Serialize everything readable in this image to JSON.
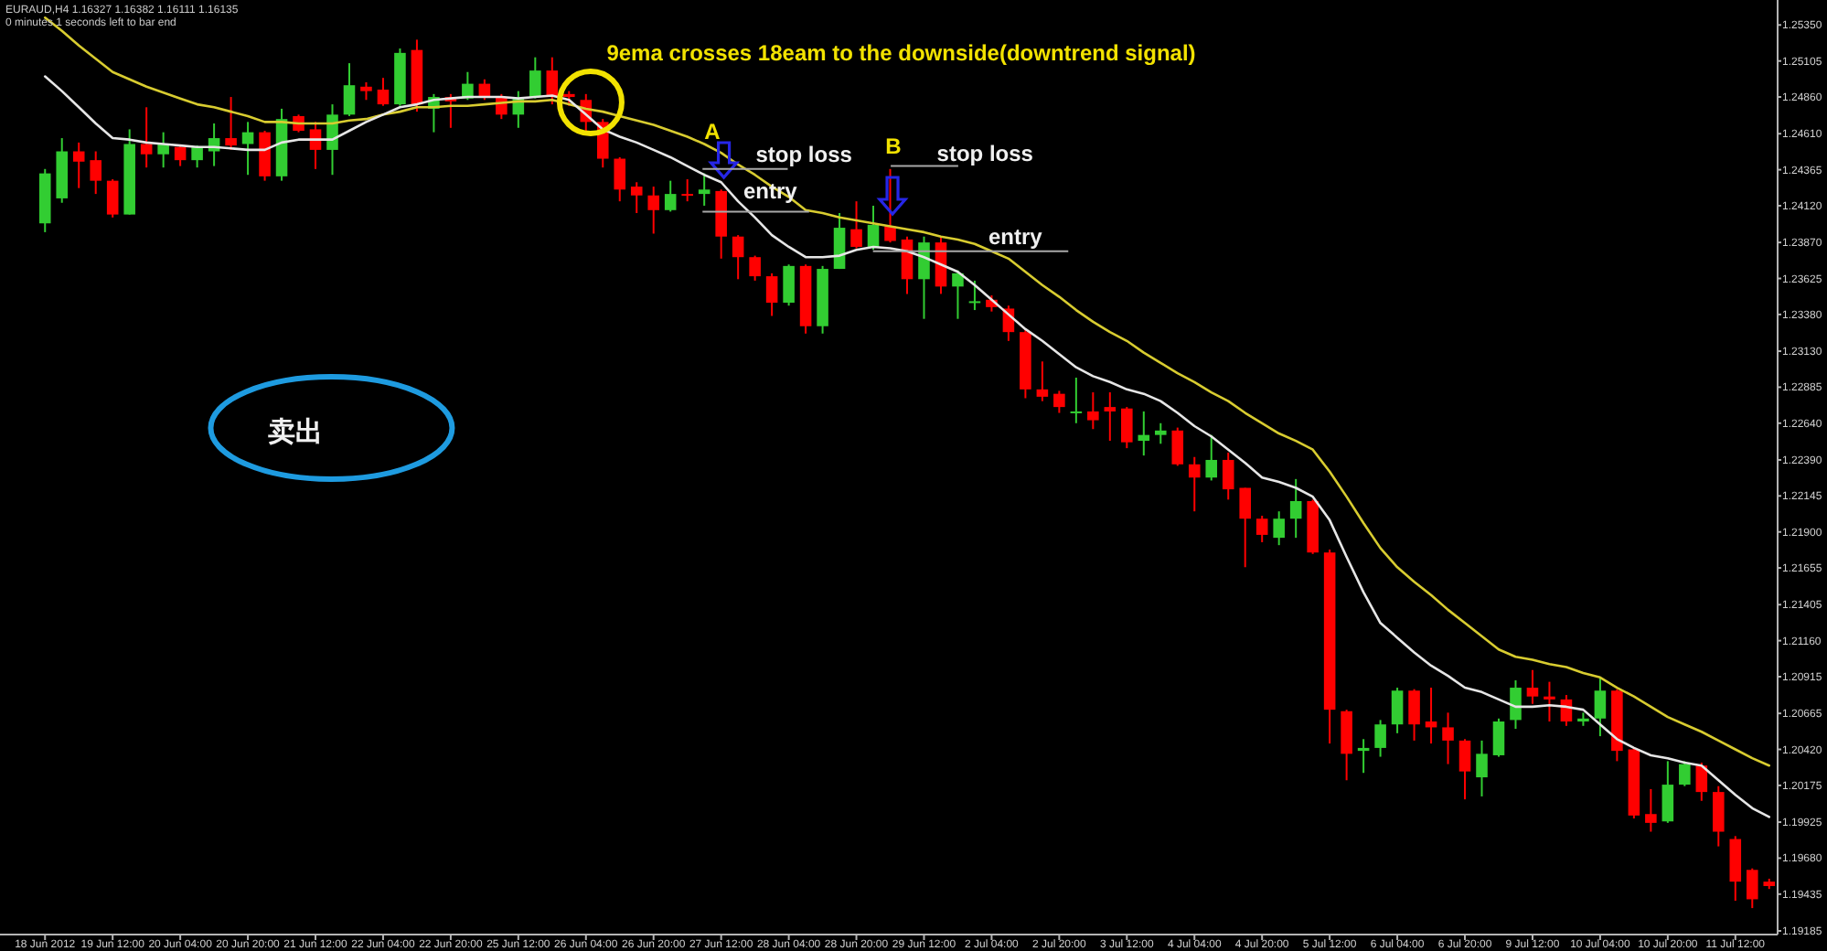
{
  "chart_data": {
    "type": "candlestick",
    "title": "EURAUD,H4  1.16327 1.16382 1.16111 1.16135",
    "subtitle": "0 minutes 1 seconds left to bar end",
    "categories": [
      "18 Jun 2012",
      null,
      null,
      null,
      "19 Jun 12:00",
      null,
      null,
      null,
      "20 Jun 04:00",
      null,
      null,
      null,
      "20 Jun 20:00",
      null,
      null,
      null,
      "21 Jun 12:00",
      null,
      null,
      null,
      "22 Jun 04:00",
      null,
      null,
      null,
      "22 Jun 20:00",
      null,
      null,
      null,
      "25 Jun 12:00",
      null,
      null,
      null,
      "26 Jun 04:00",
      null,
      null,
      null,
      "26 Jun 20:00",
      null,
      null,
      null,
      "27 Jun 12:00",
      null,
      null,
      null,
      "28 Jun 04:00",
      null,
      null,
      null,
      "28 Jun 20:00",
      null,
      null,
      null,
      "29 Jun 12:00",
      null,
      null,
      null,
      "2 Jul 04:00",
      null,
      null,
      null,
      "2 Jul 20:00",
      null,
      null,
      null,
      "3 Jul 12:00",
      null,
      null,
      null,
      "4 Jul 04:00",
      null,
      null,
      null,
      "4 Jul 20:00",
      null,
      null,
      null,
      "5 Jul 12:00",
      null,
      null,
      null,
      "6 Jul 04:00",
      null,
      null,
      null,
      "6 Jul 20:00",
      null,
      null,
      null,
      "9 Jul 12:00",
      null,
      null,
      null,
      "10 Jul 04:00",
      null,
      null,
      null,
      "10 Jul 20:00",
      null,
      null,
      null,
      "11 Jul 12:00",
      null,
      null
    ],
    "ohlc": [
      [
        1.24,
        1.2437,
        1.2394,
        1.2434
      ],
      [
        1.2417,
        1.2458,
        1.2414,
        1.2449
      ],
      [
        1.2449,
        1.2455,
        1.2424,
        1.2442
      ],
      [
        1.2443,
        1.2449,
        1.242,
        1.2429
      ],
      [
        1.2429,
        1.243,
        1.2404,
        1.2406
      ],
      [
        1.2406,
        1.2464,
        1.2406,
        1.2454
      ],
      [
        1.2454,
        1.2479,
        1.2438,
        1.2447
      ],
      [
        1.2447,
        1.2462,
        1.2438,
        1.2454
      ],
      [
        1.2452,
        1.2453,
        1.2439,
        1.2443
      ],
      [
        1.2443,
        1.2453,
        1.2438,
        1.2452
      ],
      [
        1.2449,
        1.2468,
        1.2439,
        1.2458
      ],
      [
        1.2458,
        1.2486,
        1.245,
        1.2453
      ],
      [
        1.2454,
        1.2469,
        1.2433,
        1.2462
      ],
      [
        1.2462,
        1.2463,
        1.2429,
        1.2432
      ],
      [
        1.2432,
        1.2478,
        1.2429,
        1.2471
      ],
      [
        1.2473,
        1.2474,
        1.2462,
        1.2463
      ],
      [
        1.2464,
        1.2469,
        1.2437,
        1.245
      ],
      [
        1.245,
        1.2481,
        1.2433,
        1.2474
      ],
      [
        1.2474,
        1.2509,
        1.2473,
        1.2494
      ],
      [
        1.2493,
        1.2496,
        1.2484,
        1.249
      ],
      [
        1.2491,
        1.2499,
        1.248,
        1.2481
      ],
      [
        1.2481,
        1.2519,
        1.248,
        1.2516
      ],
      [
        1.2518,
        1.2525,
        1.2476,
        1.2481
      ],
      [
        1.2478,
        1.2488,
        1.2462,
        1.2486
      ],
      [
        1.2486,
        1.2488,
        1.2465,
        1.2483
      ],
      [
        1.2485,
        1.2503,
        1.2484,
        1.2495
      ],
      [
        1.2495,
        1.2498,
        1.2484,
        1.2486
      ],
      [
        1.2486,
        1.2488,
        1.2471,
        1.2474
      ],
      [
        1.2474,
        1.249,
        1.2465,
        1.2485
      ],
      [
        1.2486,
        1.2513,
        1.2485,
        1.2504
      ],
      [
        1.2504,
        1.2513,
        1.2481,
        1.2486
      ],
      [
        1.2488,
        1.249,
        1.248,
        1.2486
      ],
      [
        1.2484,
        1.2488,
        1.2463,
        1.2469
      ],
      [
        1.2469,
        1.2471,
        1.2438,
        1.2444
      ],
      [
        1.2444,
        1.2445,
        1.2415,
        1.2423
      ],
      [
        1.2425,
        1.2428,
        1.2407,
        1.2419
      ],
      [
        1.2419,
        1.2425,
        1.2393,
        1.2409
      ],
      [
        1.2409,
        1.2429,
        1.2408,
        1.242
      ],
      [
        1.242,
        1.243,
        1.2415,
        1.2419
      ],
      [
        1.242,
        1.2434,
        1.2412,
        1.2423
      ],
      [
        1.2422,
        1.2423,
        1.2376,
        1.2391
      ],
      [
        1.2391,
        1.2392,
        1.2362,
        1.2377
      ],
      [
        1.2377,
        1.2378,
        1.2361,
        1.2364
      ],
      [
        1.2364,
        1.2366,
        1.2337,
        1.2346
      ],
      [
        1.2346,
        1.2372,
        1.2344,
        1.2371
      ],
      [
        1.2371,
        1.2372,
        1.2325,
        1.233
      ],
      [
        1.233,
        1.2371,
        1.2325,
        1.2369
      ],
      [
        1.2369,
        1.2407,
        1.2369,
        1.2397
      ],
      [
        1.2396,
        1.2415,
        1.2383,
        1.2384
      ],
      [
        1.2384,
        1.2412,
        1.2382,
        1.2399
      ],
      [
        1.2398,
        1.2437,
        1.2387,
        1.2388
      ],
      [
        1.2389,
        1.2391,
        1.2352,
        1.2362
      ],
      [
        1.2362,
        1.2391,
        1.2335,
        1.2387
      ],
      [
        1.2387,
        1.2391,
        1.2352,
        1.2357
      ],
      [
        1.2357,
        1.2368,
        1.2335,
        1.2366
      ],
      [
        1.2346,
        1.2361,
        1.2341,
        1.2347
      ],
      [
        1.2348,
        1.2351,
        1.234,
        1.2343
      ],
      [
        1.2342,
        1.2344,
        1.232,
        1.2326
      ],
      [
        1.2326,
        1.2328,
        1.2281,
        1.2287
      ],
      [
        1.2287,
        1.2306,
        1.2279,
        1.2282
      ],
      [
        1.2284,
        1.2286,
        1.2271,
        1.2275
      ],
      [
        1.2271,
        1.2295,
        1.2264,
        1.2272
      ],
      [
        1.2272,
        1.2285,
        1.226,
        1.2266
      ],
      [
        1.2275,
        1.2285,
        1.2252,
        1.2272
      ],
      [
        1.2274,
        1.2275,
        1.2247,
        1.2251
      ],
      [
        1.2252,
        1.2272,
        1.2242,
        1.2256
      ],
      [
        1.2256,
        1.2264,
        1.225,
        1.2259
      ],
      [
        1.2259,
        1.2261,
        1.2235,
        1.2236
      ],
      [
        1.2236,
        1.2241,
        1.2204,
        1.2227
      ],
      [
        1.2227,
        1.2256,
        1.2225,
        1.2239
      ],
      [
        1.2239,
        1.2244,
        1.2212,
        1.2219
      ],
      [
        1.222,
        1.222,
        1.2166,
        1.2199
      ],
      [
        1.2199,
        1.2201,
        1.2183,
        1.2188
      ],
      [
        1.2186,
        1.2204,
        1.2181,
        1.2199
      ],
      [
        1.2199,
        1.2226,
        1.2186,
        1.2211
      ],
      [
        1.2211,
        1.2212,
        1.2175,
        1.2176
      ],
      [
        1.2176,
        1.2178,
        1.2046,
        1.2069
      ],
      [
        1.2068,
        1.2069,
        1.2021,
        1.2039
      ],
      [
        1.2041,
        1.2049,
        1.2026,
        1.2043
      ],
      [
        1.2043,
        1.2062,
        1.2037,
        1.2059
      ],
      [
        1.2059,
        1.2084,
        1.2053,
        1.2082
      ],
      [
        1.2082,
        1.2083,
        1.2048,
        1.2059
      ],
      [
        1.2061,
        1.2084,
        1.2046,
        1.2057
      ],
      [
        1.2057,
        1.2067,
        1.2032,
        1.2048
      ],
      [
        1.2048,
        1.2049,
        1.2008,
        1.2027
      ],
      [
        1.2023,
        1.2048,
        1.201,
        1.2039
      ],
      [
        1.2038,
        1.2063,
        1.2037,
        1.2061
      ],
      [
        1.2062,
        1.2089,
        1.2056,
        1.2084
      ],
      [
        1.2084,
        1.2096,
        1.2073,
        1.2078
      ],
      [
        1.2078,
        1.2088,
        1.2061,
        1.2076
      ],
      [
        1.2076,
        1.2079,
        1.2058,
        1.2061
      ],
      [
        1.2061,
        1.2067,
        1.2058,
        1.2063
      ],
      [
        1.2063,
        1.2091,
        1.2051,
        1.2082
      ],
      [
        1.2082,
        1.2083,
        1.2034,
        1.2041
      ],
      [
        1.2042,
        1.2043,
        1.1995,
        1.1997
      ],
      [
        1.1998,
        1.2015,
        1.1986,
        1.1992
      ],
      [
        1.1993,
        1.2034,
        1.1992,
        1.2018
      ],
      [
        1.2018,
        1.2034,
        1.2017,
        1.2032
      ],
      [
        1.2031,
        1.2033,
        1.2007,
        1.2013
      ],
      [
        1.2013,
        1.2017,
        1.1976,
        1.1986
      ],
      [
        1.1981,
        1.1983,
        1.1939,
        1.1952
      ],
      [
        1.196,
        1.1961,
        1.1934,
        1.194
      ],
      [
        1.1952,
        1.1954,
        1.1947,
        1.1949
      ]
    ],
    "colors": [
      "#32cd32",
      "#32cd32",
      "#ff0000",
      "#ff0000",
      "#ff0000",
      "#32cd32",
      "#ff0000",
      "#32cd32",
      "#ff0000",
      "#32cd32",
      "#32cd32",
      "#ff0000",
      "#32cd32",
      "#ff0000",
      "#32cd32",
      "#ff0000",
      "#ff0000",
      "#32cd32",
      "#32cd32",
      "#ff0000",
      "#ff0000",
      "#32cd32",
      "#ff0000",
      "#32cd32",
      "#ff0000",
      "#32cd32",
      "#ff0000",
      "#ff0000",
      "#32cd32",
      "#32cd32",
      "#ff0000",
      "#ff0000",
      "#ff0000",
      "#ff0000",
      "#ff0000",
      "#ff0000",
      "#ff0000",
      "#32cd32",
      "#ff0000",
      "#32cd32",
      "#ff0000",
      "#ff0000",
      "#ff0000",
      "#ff0000",
      "#32cd32",
      "#ff0000",
      "#32cd32",
      "#32cd32",
      "#ff0000",
      "#32cd32",
      "#ff0000",
      "#ff0000",
      "#32cd32",
      "#ff0000",
      "#32cd32",
      "#32cd32",
      "#ff0000",
      "#ff0000",
      "#ff0000",
      "#ff0000",
      "#ff0000",
      "#32cd32",
      "#ff0000",
      "#ff0000",
      "#ff0000",
      "#32cd32",
      "#32cd32",
      "#ff0000",
      "#ff0000",
      "#32cd32",
      "#ff0000",
      "#ff0000",
      "#ff0000",
      "#32cd32",
      "#32cd32",
      "#ff0000",
      "#ff0000",
      "#ff0000",
      "#32cd32",
      "#32cd32",
      "#32cd32",
      "#ff0000",
      "#ff0000",
      "#ff0000",
      "#ff0000",
      "#32cd32",
      "#32cd32",
      "#32cd32",
      "#ff0000",
      "#ff0000",
      "#ff0000",
      "#32cd32",
      "#32cd32",
      "#ff0000",
      "#ff0000",
      "#ff0000",
      "#32cd32",
      "#32cd32",
      "#ff0000",
      "#ff0000",
      "#ff0000",
      "#ff0000",
      "#ff0000"
    ],
    "series": [
      {
        "type": "line",
        "color": "#d8cc30",
        "values": [
          1.254,
          1.2531,
          1.2521,
          1.2512,
          1.2503,
          1.2498,
          1.2493,
          1.2489,
          1.2485,
          1.2481,
          1.2479,
          1.2476,
          1.2473,
          1.2469,
          1.2469,
          1.2468,
          1.2468,
          1.2468,
          1.247,
          1.2471,
          1.2474,
          1.2476,
          1.2479,
          1.2479,
          1.248,
          1.248,
          1.2481,
          1.2482,
          1.2483,
          1.2483,
          1.2484,
          1.2481,
          1.2478,
          1.2476,
          1.2473,
          1.247,
          1.2467,
          1.2463,
          1.2459,
          1.2454,
          1.2448,
          1.244,
          1.2433,
          1.2425,
          1.2418,
          1.2409,
          1.2407,
          1.2404,
          1.2402,
          1.24,
          1.2398,
          1.2396,
          1.2394,
          1.2391,
          1.2389,
          1.2386,
          1.2381,
          1.2376,
          1.2367,
          1.2358,
          1.235,
          1.2341,
          1.2333,
          1.2326,
          1.232,
          1.2312,
          1.2305,
          1.2298,
          1.2292,
          1.2285,
          1.2279,
          1.2271,
          1.2264,
          1.2257,
          1.2252,
          1.2246,
          1.2231,
          1.2214,
          1.2196,
          1.2179,
          1.2166,
          1.2156,
          1.2147,
          1.2137,
          1.2128,
          1.2119,
          1.211,
          1.2105,
          1.2103,
          1.21,
          1.2098,
          1.2094,
          1.2091,
          1.2084,
          1.2078,
          1.2071,
          1.2064,
          1.2059,
          1.2054,
          1.2048,
          1.2042,
          1.2036,
          1.2031
        ]
      },
      {
        "type": "line",
        "color": "#e6e6e6",
        "values": [
          1.25,
          1.249,
          1.2479,
          1.2468,
          1.2458,
          1.2457,
          1.2455,
          1.2454,
          1.2453,
          1.2452,
          1.2452,
          1.2451,
          1.245,
          1.245,
          1.2455,
          1.2457,
          1.2457,
          1.2457,
          1.2463,
          1.2469,
          1.2474,
          1.2479,
          1.2481,
          1.2484,
          1.2485,
          1.2486,
          1.2486,
          1.2486,
          1.2485,
          1.2486,
          1.2487,
          1.2484,
          1.2474,
          1.2464,
          1.2459,
          1.2455,
          1.245,
          1.2445,
          1.2439,
          1.2433,
          1.2428,
          1.2415,
          1.2404,
          1.2392,
          1.2384,
          1.2377,
          1.2377,
          1.2378,
          1.2382,
          1.2384,
          1.2383,
          1.2381,
          1.2377,
          1.2372,
          1.2367,
          1.2358,
          1.2348,
          1.2338,
          1.2328,
          1.232,
          1.2311,
          1.2302,
          1.2296,
          1.2292,
          1.2287,
          1.2284,
          1.2279,
          1.2271,
          1.2262,
          1.2255,
          1.2246,
          1.2237,
          1.2227,
          1.2224,
          1.222,
          1.2214,
          1.2198,
          1.2173,
          1.2149,
          1.2128,
          1.2118,
          1.2108,
          1.2099,
          1.2092,
          1.2084,
          1.2081,
          1.2076,
          1.2071,
          1.2071,
          1.2072,
          1.2071,
          1.2069,
          1.2059,
          1.2049,
          1.2043,
          1.2038,
          1.2036,
          1.2033,
          1.2031,
          1.2021,
          1.2011,
          1.2002,
          1.1996
        ]
      }
    ],
    "ylim": [
      1.1916,
      1.2552
    ],
    "yticks": [
      {
        "value": 1.2535,
        "label": "1.25350"
      },
      {
        "value": 1.25105,
        "label": "1.25105"
      },
      {
        "value": 1.2486,
        "label": "1.24860"
      },
      {
        "value": 1.2461,
        "label": "1.24610"
      },
      {
        "value": 1.24365,
        "label": "1.24365"
      },
      {
        "value": 1.2412,
        "label": "1.24120"
      },
      {
        "value": 1.2387,
        "label": "1.23870"
      },
      {
        "value": 1.23625,
        "label": "1.23625"
      },
      {
        "value": 1.2338,
        "label": "1.23380"
      },
      {
        "value": 1.2313,
        "label": "1.23130"
      },
      {
        "value": 1.22885,
        "label": "1.22885"
      },
      {
        "value": 1.2264,
        "label": "1.22640"
      },
      {
        "value": 1.2239,
        "label": "1.22390"
      },
      {
        "value": 1.22145,
        "label": "1.22145"
      },
      {
        "value": 1.219,
        "label": "1.21900"
      },
      {
        "value": 1.21655,
        "label": "1.21655"
      },
      {
        "value": 1.21405,
        "label": "1.21405"
      },
      {
        "value": 1.2116,
        "label": "1.21160"
      },
      {
        "value": 1.20915,
        "label": "1.20915"
      },
      {
        "value": 1.20665,
        "label": "1.20665"
      },
      {
        "value": 1.2042,
        "label": "1.20420"
      },
      {
        "value": 1.20175,
        "label": "1.20175"
      },
      {
        "value": 1.19925,
        "label": "1.19925"
      },
      {
        "value": 1.1968,
        "label": "1.19680"
      },
      {
        "value": 1.19435,
        "label": "1.19435"
      },
      {
        "value": 1.19185,
        "label": "1.19185"
      }
    ],
    "ref_lines": [
      {
        "axis": "y",
        "value": 1.2437,
        "label": "stop loss",
        "color": "#a8a8a8"
      },
      {
        "axis": "y",
        "value": 1.2408,
        "label": "entry",
        "color": "#a8a8a8"
      },
      {
        "axis": "y",
        "value": 1.2439,
        "label": "stop loss",
        "color": "#a8a8a8"
      },
      {
        "axis": "y",
        "value": 1.2381,
        "label": "entry",
        "color": "#a8a8a8"
      }
    ],
    "annotations": [
      "9ema crosses  18eam to the downside(downtrend signal)",
      "A",
      "B",
      "卖出"
    ]
  }
}
